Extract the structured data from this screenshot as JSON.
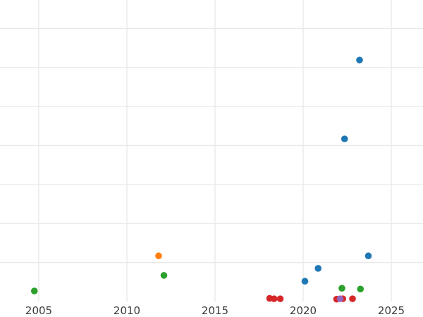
{
  "figure": {
    "background_color": "#ffffff",
    "grid_color": "#e8e8e8",
    "tick_label_color": "#3b3b3b"
  },
  "chart_data": {
    "type": "scatter",
    "title": "",
    "xlabel": "",
    "ylabel": "",
    "grid": true,
    "legend": false,
    "x_axis": {
      "ticks": [
        2005,
        2010,
        2015,
        2020,
        2025
      ],
      "tick_labels": [
        "2005",
        "2010",
        "2015",
        "2020",
        "2025"
      ],
      "range": [
        2002.8,
        2026.8
      ]
    },
    "y_axis": {
      "range": [
        0,
        7.73
      ],
      "gridline_step": 1,
      "tick_labels_visible": false
    },
    "marker": {
      "shape": "circle",
      "radius_px": 4.8
    },
    "series": [
      {
        "name": "blue",
        "color": "#1f77b4",
        "points": [
          {
            "x": 2020.1,
            "y": 0.52
          },
          {
            "x": 2020.85,
            "y": 0.85
          },
          {
            "x": 2022.35,
            "y": 4.17
          },
          {
            "x": 2023.2,
            "y": 6.19
          },
          {
            "x": 2023.7,
            "y": 1.17
          }
        ]
      },
      {
        "name": "orange",
        "color": "#ff7f0e",
        "points": [
          {
            "x": 2011.8,
            "y": 1.17
          }
        ]
      },
      {
        "name": "green",
        "color": "#2ca02c",
        "points": [
          {
            "x": 2004.75,
            "y": 0.27
          },
          {
            "x": 2012.1,
            "y": 0.67
          },
          {
            "x": 2022.2,
            "y": 0.34
          },
          {
            "x": 2023.25,
            "y": 0.32
          }
        ]
      },
      {
        "name": "red",
        "color": "#d62728",
        "points": [
          {
            "x": 2018.1,
            "y": 0.08
          },
          {
            "x": 2018.35,
            "y": 0.07
          },
          {
            "x": 2018.7,
            "y": 0.07
          },
          {
            "x": 2021.9,
            "y": 0.06
          },
          {
            "x": 2022.25,
            "y": 0.07
          },
          {
            "x": 2022.8,
            "y": 0.07
          }
        ]
      },
      {
        "name": "purple",
        "color": "#9467bd",
        "points": [
          {
            "x": 2022.1,
            "y": 0.07
          }
        ]
      }
    ]
  }
}
